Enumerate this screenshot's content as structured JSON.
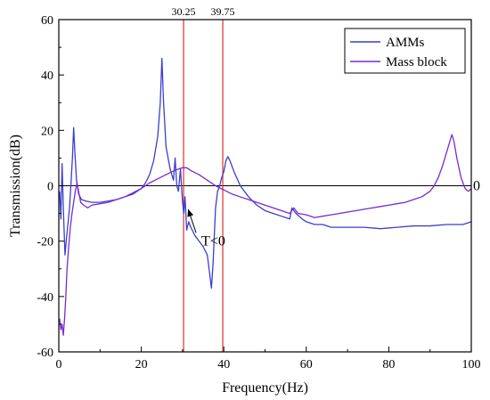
{
  "chart_data": {
    "type": "line",
    "xlabel": "Frequency(Hz)",
    "ylabel": "Transmission(dB)",
    "xlim": [
      0,
      100
    ],
    "ylim": [
      -60,
      60
    ],
    "xticks": [
      0,
      20,
      40,
      60,
      80,
      100
    ],
    "yticks": [
      -60,
      -40,
      -20,
      0,
      20,
      40,
      60
    ],
    "grid": false,
    "legend_position": "top-right",
    "reference_lines": [
      {
        "value": 30.25,
        "label": "30.25",
        "color": "#e0302a"
      },
      {
        "value": 39.75,
        "label": "39.75",
        "color": "#e0302a"
      }
    ],
    "zero_line_label": "0",
    "annotation": {
      "text": "T<0",
      "x": 35,
      "y": -20,
      "arrow_to": [
        30.5,
        -8.5
      ]
    },
    "series": [
      {
        "name": "AMMs",
        "color": "#3a3fcf",
        "points": [
          [
            0.2,
            -2
          ],
          [
            0.5,
            -12
          ],
          [
            0.8,
            8
          ],
          [
            1.1,
            -8
          ],
          [
            1.5,
            -25
          ],
          [
            1.8,
            -20
          ],
          [
            2.2,
            -14
          ],
          [
            2.6,
            -8
          ],
          [
            3.0,
            2
          ],
          [
            3.3,
            10
          ],
          [
            3.6,
            21
          ],
          [
            3.9,
            12
          ],
          [
            4.3,
            2
          ],
          [
            4.8,
            -3
          ],
          [
            5.5,
            -5
          ],
          [
            6.5,
            -5.5
          ],
          [
            8,
            -6
          ],
          [
            10,
            -6
          ],
          [
            12,
            -5.5
          ],
          [
            14,
            -5
          ],
          [
            16,
            -4
          ],
          [
            18,
            -3
          ],
          [
            20,
            -1
          ],
          [
            21,
            1
          ],
          [
            22,
            4
          ],
          [
            23,
            9
          ],
          [
            24,
            18
          ],
          [
            24.6,
            30
          ],
          [
            25.0,
            46
          ],
          [
            25.4,
            30
          ],
          [
            26,
            14
          ],
          [
            27,
            6
          ],
          [
            27.8,
            2
          ],
          [
            28.2,
            10
          ],
          [
            28.6,
            0
          ],
          [
            29.0,
            -2
          ],
          [
            29.5,
            6
          ],
          [
            30.0,
            -6
          ],
          [
            30.3,
            -10
          ],
          [
            30.6,
            -4
          ],
          [
            31.0,
            -16
          ],
          [
            31.5,
            -13
          ],
          [
            32,
            -15
          ],
          [
            33,
            -18
          ],
          [
            34,
            -20
          ],
          [
            35,
            -22
          ],
          [
            36,
            -25
          ],
          [
            36.6,
            -32
          ],
          [
            37.0,
            -37
          ],
          [
            37.4,
            -28
          ],
          [
            38,
            -8
          ],
          [
            38.5,
            -2
          ],
          [
            39,
            0
          ],
          [
            39.5,
            3
          ],
          [
            40,
            5
          ],
          [
            40.5,
            9
          ],
          [
            41,
            10.5
          ],
          [
            41.5,
            9
          ],
          [
            42.5,
            5
          ],
          [
            44,
            0
          ],
          [
            46,
            -4
          ],
          [
            48,
            -7
          ],
          [
            50,
            -9
          ],
          [
            52,
            -10
          ],
          [
            54,
            -11
          ],
          [
            56,
            -12
          ],
          [
            56.5,
            -8
          ],
          [
            57.5,
            -10
          ],
          [
            59,
            -12
          ],
          [
            60,
            -13
          ],
          [
            62,
            -14
          ],
          [
            64,
            -14
          ],
          [
            66,
            -15
          ],
          [
            70,
            -15
          ],
          [
            74,
            -15
          ],
          [
            78,
            -15.5
          ],
          [
            82,
            -15
          ],
          [
            86,
            -14.5
          ],
          [
            90,
            -14.5
          ],
          [
            94,
            -14
          ],
          [
            98,
            -14
          ],
          [
            100,
            -13
          ]
        ]
      },
      {
        "name": "Mass block",
        "color": "#7a2ad0",
        "points": [
          [
            0.2,
            -48
          ],
          [
            0.5,
            -52
          ],
          [
            0.8,
            -50
          ],
          [
            1.1,
            -54
          ],
          [
            1.4,
            -48
          ],
          [
            1.7,
            -40
          ],
          [
            2.0,
            -30
          ],
          [
            2.4,
            -22
          ],
          [
            2.8,
            -15
          ],
          [
            3.2,
            -10
          ],
          [
            3.6,
            -6
          ],
          [
            4.0,
            -2
          ],
          [
            4.4,
            1
          ],
          [
            4.8,
            -2
          ],
          [
            5.3,
            -6
          ],
          [
            6,
            -7
          ],
          [
            7,
            -8
          ],
          [
            8,
            -7
          ],
          [
            10,
            -6.5
          ],
          [
            12,
            -6
          ],
          [
            14,
            -5
          ],
          [
            16,
            -4
          ],
          [
            18,
            -2.5
          ],
          [
            20,
            -1
          ],
          [
            22,
            1
          ],
          [
            24,
            2.5
          ],
          [
            26,
            4
          ],
          [
            28,
            5.5
          ],
          [
            30,
            6.5
          ],
          [
            31,
            6.5
          ],
          [
            32,
            5.5
          ],
          [
            34,
            4
          ],
          [
            36,
            2
          ],
          [
            38,
            0
          ],
          [
            40,
            -1.5
          ],
          [
            42,
            -3
          ],
          [
            44,
            -4
          ],
          [
            46,
            -5
          ],
          [
            48,
            -6
          ],
          [
            50,
            -7
          ],
          [
            52,
            -8
          ],
          [
            54,
            -9
          ],
          [
            56,
            -10
          ],
          [
            57,
            -8
          ],
          [
            58,
            -10
          ],
          [
            60,
            -10.5
          ],
          [
            62,
            -11.5
          ],
          [
            64,
            -11
          ],
          [
            66,
            -10.5
          ],
          [
            68,
            -10
          ],
          [
            70,
            -9.5
          ],
          [
            72,
            -9
          ],
          [
            74,
            -8.5
          ],
          [
            76,
            -8
          ],
          [
            78,
            -7.5
          ],
          [
            80,
            -7
          ],
          [
            82,
            -6.5
          ],
          [
            84,
            -6
          ],
          [
            86,
            -5
          ],
          [
            88,
            -4
          ],
          [
            90,
            -2
          ],
          [
            91,
            0
          ],
          [
            92,
            3
          ],
          [
            93,
            7
          ],
          [
            94,
            12
          ],
          [
            94.8,
            16
          ],
          [
            95.3,
            18.5
          ],
          [
            95.8,
            16
          ],
          [
            96.5,
            10
          ],
          [
            97.5,
            3
          ],
          [
            98.5,
            -1
          ],
          [
            99.3,
            -2
          ],
          [
            100,
            -1
          ]
        ]
      }
    ]
  }
}
